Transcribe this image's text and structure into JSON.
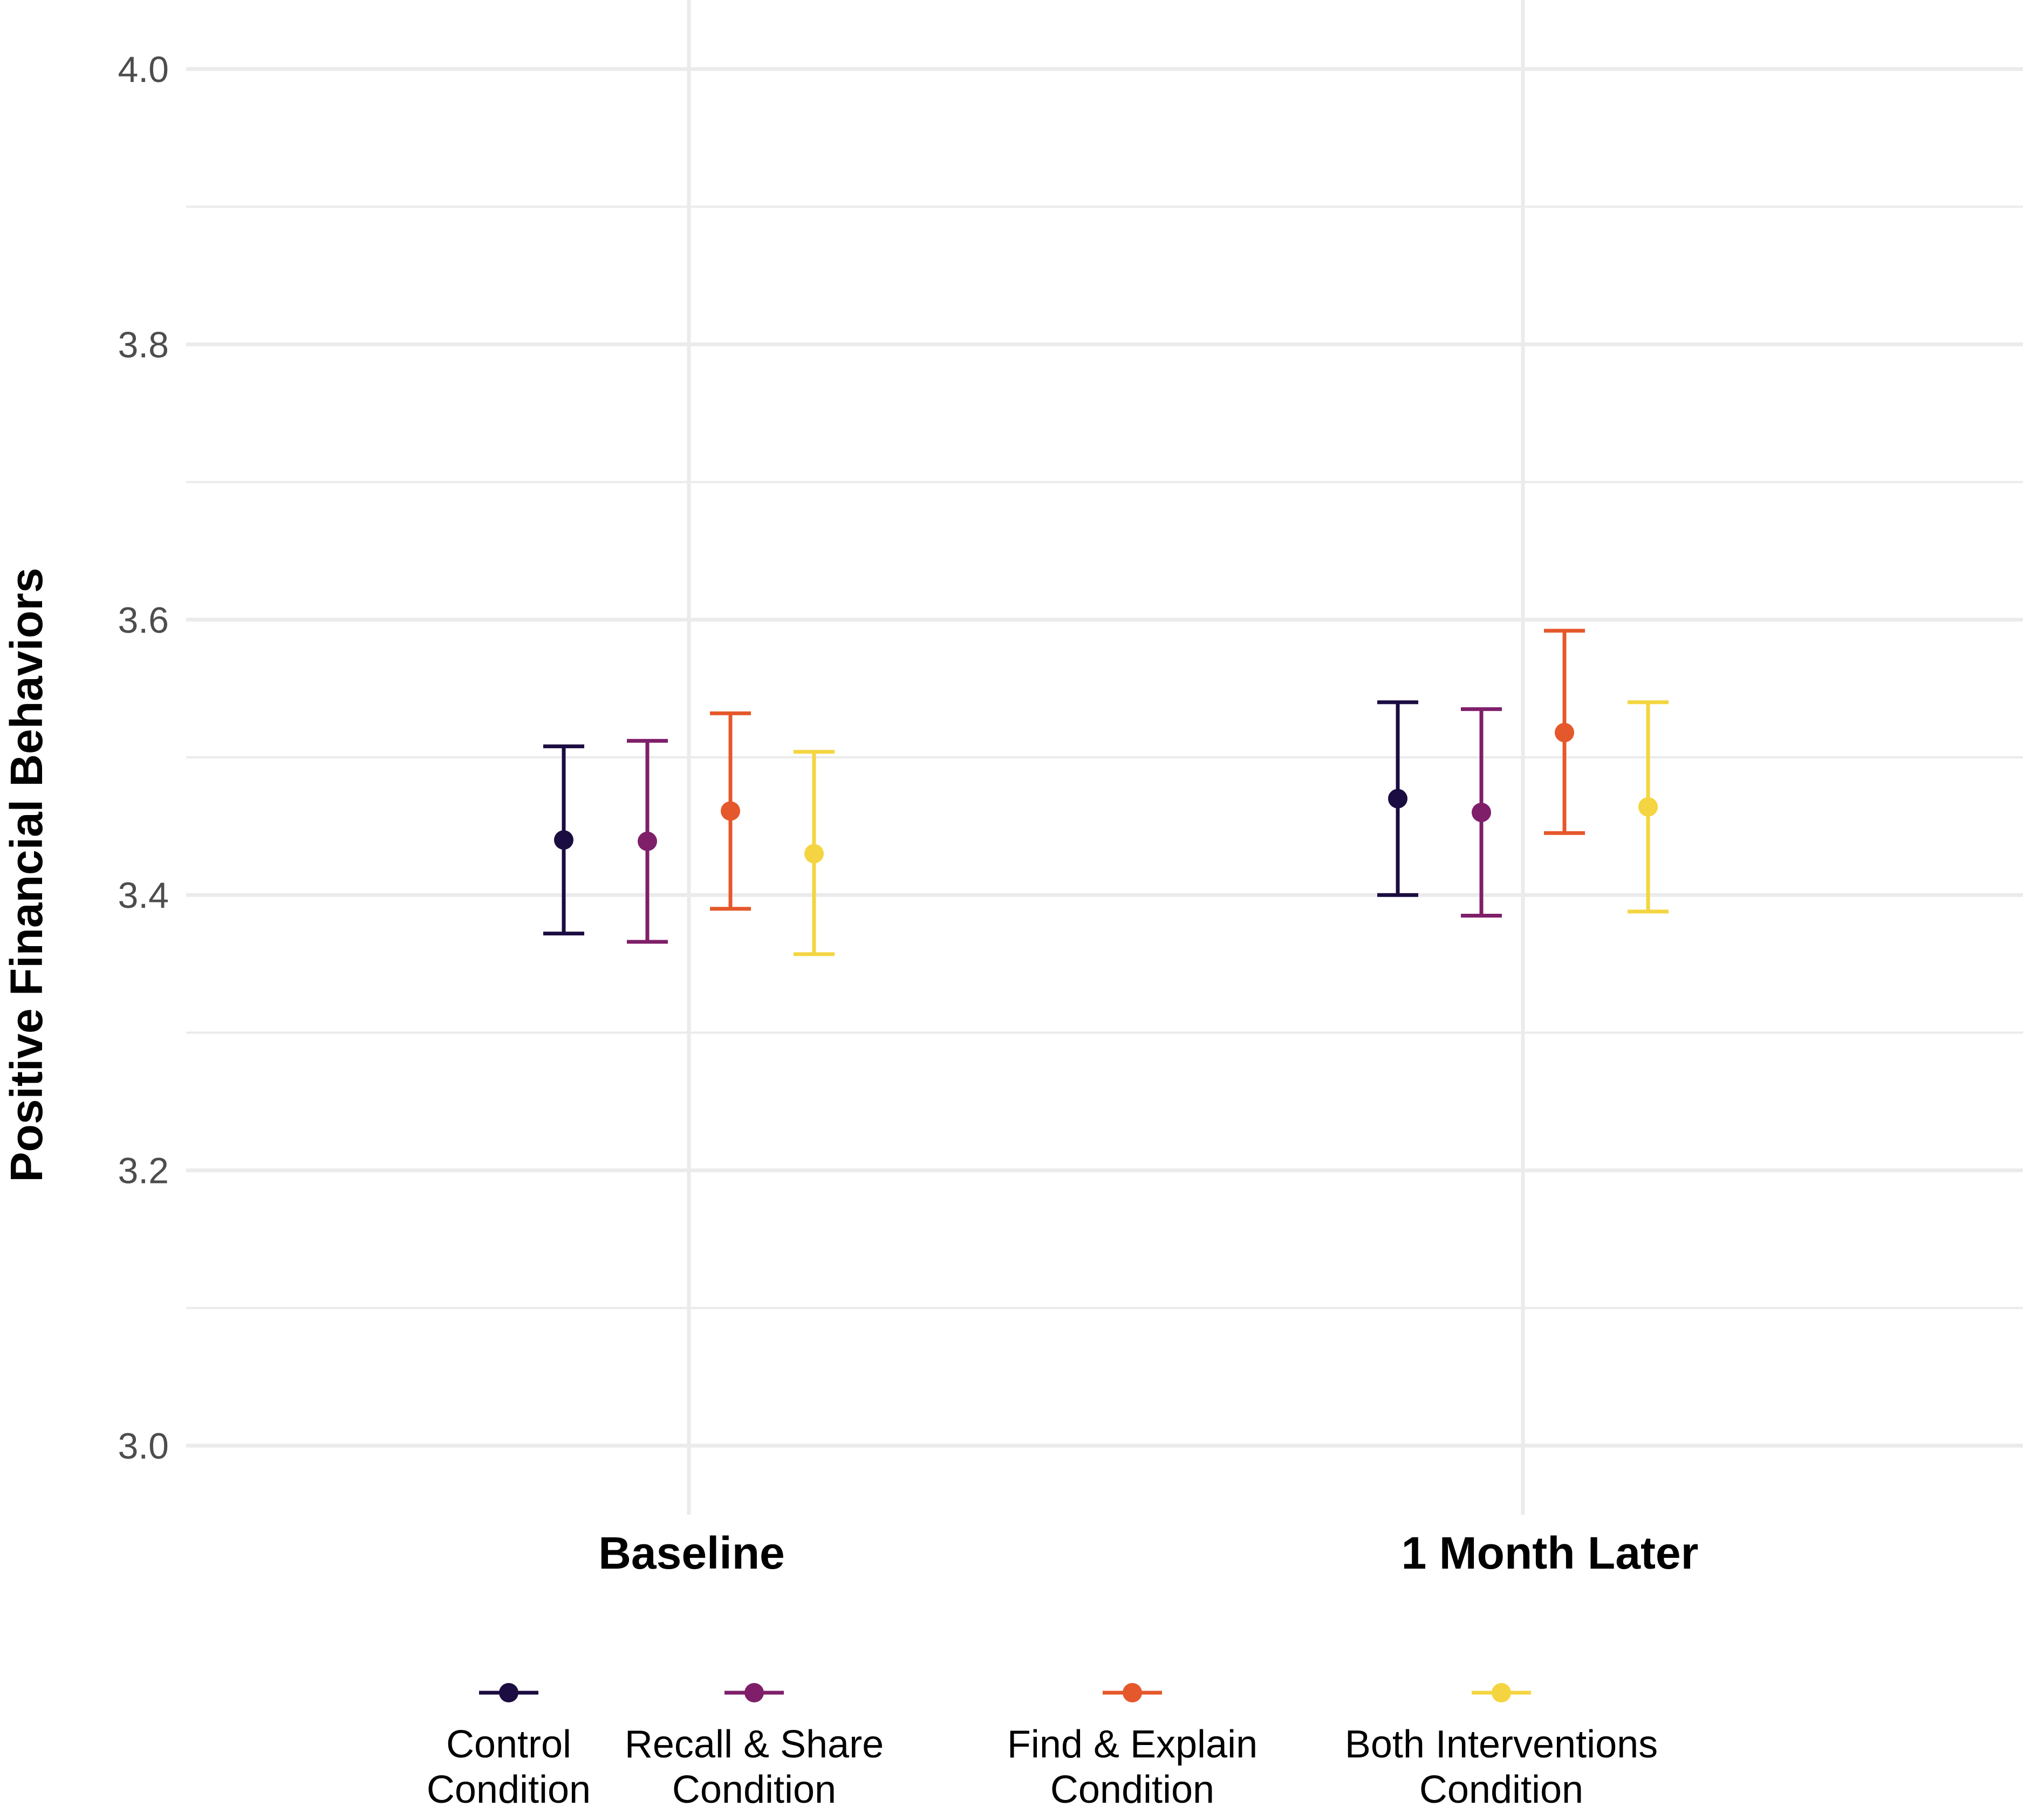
{
  "chart_data": {
    "type": "scatter",
    "subtype": "point-with-error-bars",
    "title": "",
    "xlabel": "",
    "ylabel": "Positive Financial Behaviors",
    "categories": [
      "Baseline",
      "1 Month Later"
    ],
    "ylim": [
      3.0,
      4.0
    ],
    "yticks": [
      "3.0",
      "3.2",
      "3.4",
      "3.6",
      "3.8",
      "4.0"
    ],
    "grid": true,
    "legend_position": "bottom",
    "series": [
      {
        "name": "Control Condition",
        "legend_lines": [
          "Control",
          "Condition"
        ],
        "color": "#1b0c41",
        "values": [
          3.44,
          3.47
        ],
        "lower": [
          3.372,
          3.4
        ],
        "upper": [
          3.508,
          3.54
        ]
      },
      {
        "name": "Recall & Share Condition",
        "legend_lines": [
          "Recall & Share",
          "Condition"
        ],
        "color": "#7f1f6a",
        "values": [
          3.439,
          3.46
        ],
        "lower": [
          3.366,
          3.385
        ],
        "upper": [
          3.512,
          3.535
        ]
      },
      {
        "name": "Find & Explain Condition",
        "legend_lines": [
          "Find & Explain",
          "Condition"
        ],
        "color": "#e5582b",
        "values": [
          3.461,
          3.518
        ],
        "lower": [
          3.39,
          3.445
        ],
        "upper": [
          3.532,
          3.592
        ]
      },
      {
        "name": "Both Interventions Condition",
        "legend_lines": [
          "Both Interventions",
          "Condition"
        ],
        "color": "#f4d541",
        "values": [
          3.43,
          3.464
        ],
        "lower": [
          3.357,
          3.388
        ],
        "upper": [
          3.504,
          3.54
        ]
      }
    ]
  }
}
